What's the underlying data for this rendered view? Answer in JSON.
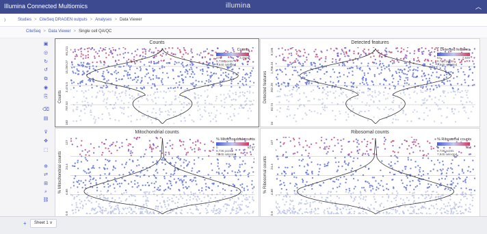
{
  "app": {
    "title": "Illumina Connected Multiomics",
    "logo_text": "illumina",
    "collapse_icon": "chevron-up-icon"
  },
  "breadcrumb_main": [
    {
      "label": "Studies"
    },
    {
      "label": "CiteSeq DRAGEN outputs"
    },
    {
      "label": "Analyses"
    },
    {
      "label": "Data Viewer"
    }
  ],
  "breadcrumb_sub": [
    {
      "label": "CiteSeq"
    },
    {
      "label": "Data Viewer"
    },
    {
      "label": "Single cell QA/QC"
    }
  ],
  "toolbar_icons": [
    "save-icon",
    "settings-icon",
    "refresh-icon",
    "undo-icon",
    "layers-icon",
    "view-icon",
    "copy-icon",
    "delete-icon",
    "table-icon",
    "filter-icon",
    "move-icon",
    "select-icon",
    "zoom-icon",
    "swap-icon",
    "grid-icon",
    "search-icon",
    "link-icon"
  ],
  "panels": [
    {
      "title": "Counts",
      "ylabel": "Counts",
      "ticks": [
        "65,211",
        "15,250.27",
        "3,474.5",
        "797.53",
        "183"
      ],
      "legend": {
        "title": "Counts",
        "min": "470",
        "max": "4,4501",
        "points": "9,736 points",
        "selected": "7,945 selected"
      }
    },
    {
      "title": "Detected features",
      "ylabel": "Detected features",
      "ticks": [
        "8,195",
        "1,706.24",
        "352.28",
        "82.74",
        "16"
      ],
      "legend": {
        "title": "Detected features",
        "min": "64",
        "max": "7,939",
        "points": "9,736 points",
        "selected": "7,945 selected"
      }
    },
    {
      "title": "Mitochondrial counts",
      "ylabel": "% Mitochondrial counts",
      "ticks": [
        "127",
        "24.4",
        "4.68",
        "0.9"
      ],
      "legend": {
        "title": "% Mitochondrial counts",
        "min": "0",
        "max": "93.97",
        "points": "9,736 points",
        "selected": "7,945 selected"
      }
    },
    {
      "title": "Ribosomal counts",
      "ylabel": "% Ribosomal counts",
      "ticks": [
        "127",
        "24.4",
        "4.68",
        "0.9"
      ],
      "legend": {
        "title": "% Ribosomal counts",
        "min": "0",
        "max": "73.8",
        "points": "9,736 points",
        "selected": "7,945 selected"
      }
    }
  ],
  "footer": {
    "add_label": "+",
    "sheet_label": "Sheet 1 ∨"
  },
  "colors": {
    "header": "#3e4a8f",
    "accent": "#4758c9",
    "low": "#4b5dd8",
    "high": "#d43a60"
  }
}
